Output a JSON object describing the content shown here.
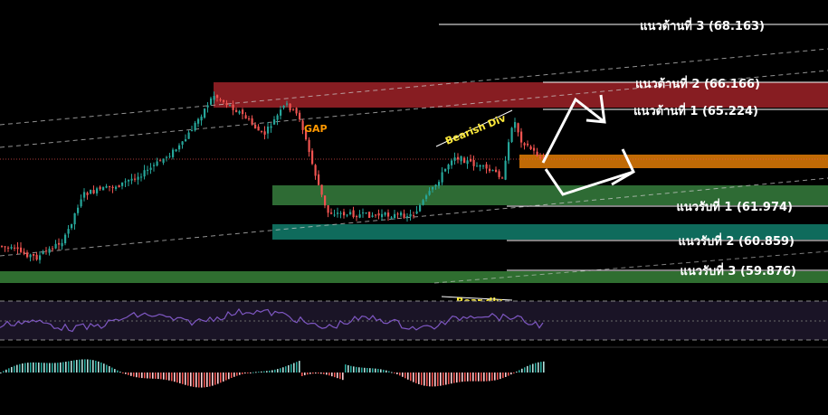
{
  "chart_data": {
    "type": "candlestick",
    "colors": {
      "background": "#000000",
      "bull": "#26a69a",
      "bear": "#ef5350",
      "resistance_zone": "#8e1f24",
      "support_zone": "#2e6b34",
      "support_zone_2": "#0f6b5c",
      "current_zone": "#c06a05",
      "support_zone_3": "#2f6e30",
      "rsi_line": "#7e57c2",
      "rsi_band": "#1a1426",
      "gap_label": "#ff9800",
      "div_label": "#ffeb3b",
      "level_line": "#ffffff"
    },
    "levels": [
      {
        "label": "แนวต้านที่ 3 (68.163)",
        "value": 68.163,
        "kind": "resistance"
      },
      {
        "label": "แนวต้านที่ 2 (66.166)",
        "value": 66.166,
        "kind": "resistance"
      },
      {
        "label": "แนวต้านที่ 1 (65.224)",
        "value": 65.224,
        "kind": "resistance"
      },
      {
        "label": "แนวรับที่ 1 (61.974)",
        "value": 61.974,
        "kind": "support"
      },
      {
        "label": "แนวรับที่ 2 (60.859)",
        "value": 60.859,
        "kind": "support"
      },
      {
        "label": "แนวรับที่ 3 (59.876)",
        "value": 59.876,
        "kind": "support"
      }
    ],
    "annotations": {
      "gap": "GAP",
      "bearish_div": "Bearish Div",
      "bear_div": "Bear div"
    },
    "panels": [
      "price",
      "rsi",
      "macd_histogram"
    ],
    "grid": false
  }
}
